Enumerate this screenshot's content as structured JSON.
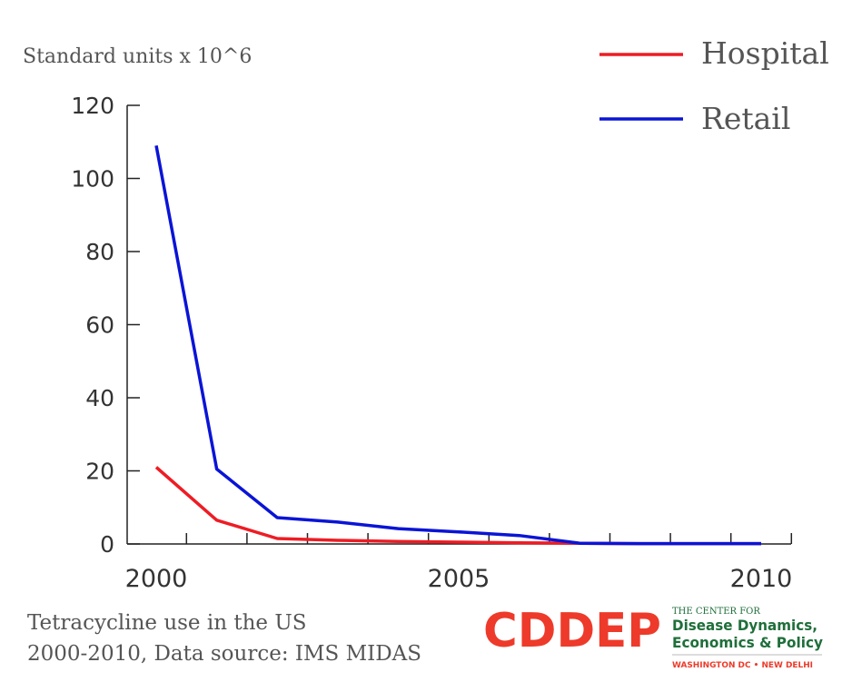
{
  "chart_data": {
    "type": "line",
    "ylabel": "Standard units x 10^6",
    "ylim": [
      0,
      120
    ],
    "xlim": [
      2000,
      2010
    ],
    "yticks": [
      0,
      20,
      40,
      60,
      80,
      100,
      120
    ],
    "xtick_labels": [
      {
        "x": 2000,
        "label": "2000"
      },
      {
        "x": 2005,
        "label": "2005"
      },
      {
        "x": 2010,
        "label": "2010"
      }
    ],
    "x_minor_ticks": [
      2000.5,
      2001.5,
      2002.5,
      2003.5,
      2004.5,
      2005.5,
      2006.5,
      2007.5,
      2008.5,
      2009.5,
      2010.5
    ],
    "legend_position": "top-right",
    "grid": false,
    "series": [
      {
        "name": "Hospital",
        "color": "#ee1c24",
        "x": [
          2000,
          2001,
          2002,
          2003,
          2004,
          2005,
          2006,
          2007,
          2008,
          2009,
          2010
        ],
        "values": [
          21,
          6.5,
          1.5,
          1.0,
          0.7,
          0.5,
          0.3,
          0.2,
          0.1,
          0.1,
          0.1
        ]
      },
      {
        "name": "Retail",
        "color": "#0a14d6",
        "x": [
          2000,
          2001,
          2002,
          2003,
          2004,
          2005,
          2006,
          2007,
          2008,
          2009,
          2010
        ],
        "values": [
          109,
          20.5,
          7.2,
          6.0,
          4.2,
          3.3,
          2.3,
          0.2,
          0.1,
          0.1,
          0.1
        ]
      }
    ]
  },
  "caption": {
    "line1": "Tetracycline use in the US",
    "line2": "2000-2010, Data source: IMS MIDAS"
  },
  "logo": {
    "mark": "CDDEP",
    "line1": "THE CENTER FOR",
    "line2": "Disease Dynamics,",
    "line3": "Economics & Policy",
    "line4": "WASHINGTON DC • NEW DELHI",
    "mark_color": "#ee3a2a",
    "text_color": "#1f6f3a",
    "tagline_color": "#ee3a2a"
  }
}
